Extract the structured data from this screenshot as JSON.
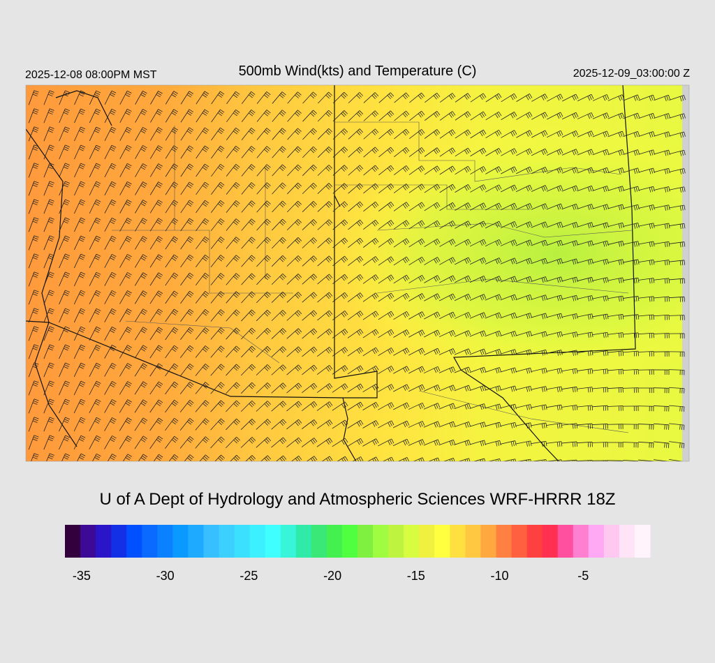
{
  "header": {
    "valid_local": "2025-12-08 08:00PM MST",
    "title": "500mb Wind(kts) and Temperature (C)",
    "valid_utc": "2025-12-09_03:00:00 Z"
  },
  "footer": {
    "credit": "U of A Dept of Hydrology and Atmospheric Sciences WRF-HRRR 18Z"
  },
  "colorbar": {
    "range": [
      -36,
      -1
    ],
    "ticks": [
      -35,
      -30,
      -25,
      -20,
      -15,
      -10,
      -5
    ],
    "colors": [
      "#33003d",
      "#3c0a96",
      "#2a16c8",
      "#1430e6",
      "#0050ff",
      "#0a6aff",
      "#0a82ff",
      "#0a9aff",
      "#1eaaff",
      "#38bfff",
      "#3cd0ff",
      "#3ce0ff",
      "#3cf0ff",
      "#40ffff",
      "#38f4d8",
      "#30eaa8",
      "#3ae878",
      "#44f050",
      "#50ff40",
      "#80f040",
      "#a0fc40",
      "#bef440",
      "#d8fc40",
      "#f0f040",
      "#ffff40",
      "#ffe040",
      "#ffc840",
      "#ffa840",
      "#ff8040",
      "#ff6040",
      "#ff4040",
      "#ff3050",
      "#ff50a0",
      "#ff80d0",
      "#ffa8f4",
      "#ffc8f0",
      "#ffe4f8",
      "#fff4fc"
    ]
  }
}
